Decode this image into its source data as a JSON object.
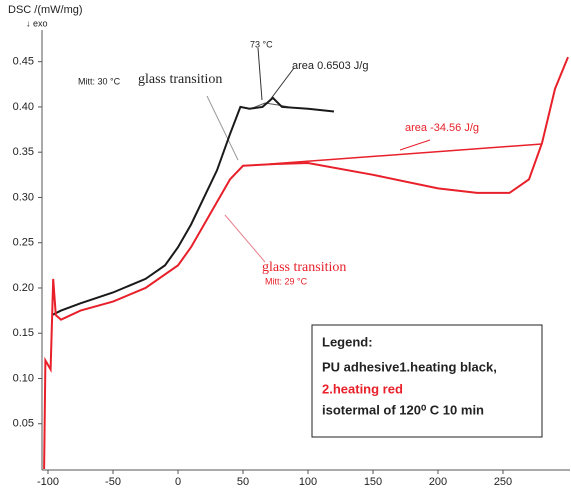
{
  "chart_data": {
    "type": "line",
    "y_label": "DSC /(mW/mg)",
    "y_label2": "↓ exo",
    "xlim": [
      -105,
      302
    ],
    "ylim": [
      0,
      0.485
    ],
    "xticks": [
      -100,
      -50,
      0,
      50,
      100,
      150,
      200,
      250
    ],
    "yticks": [
      0.05,
      {
        "value": 0.1,
        "label": "0.10"
      },
      0.15,
      {
        "value": 0.2,
        "label": "0.20"
      },
      0.25,
      {
        "value": 0.3,
        "label": "0.30"
      },
      0.35,
      {
        "value": 0.4,
        "label": "0.40"
      },
      0.45
    ],
    "series": [
      {
        "color": "#1a1a1a",
        "x": [
          -97,
          -90,
          -75,
          -50,
          -25,
          -10,
          0,
          10,
          20,
          30,
          40,
          48,
          55,
          65,
          73,
          80,
          100,
          120
        ],
        "values": [
          0.17,
          0.175,
          0.183,
          0.195,
          0.21,
          0.225,
          0.245,
          0.27,
          0.3,
          0.33,
          0.37,
          0.4,
          0.398,
          0.4,
          0.41,
          0.4,
          0.398,
          0.395
        ]
      },
      {
        "color": "#e8202a",
        "x": [
          -103,
          -102,
          -98,
          -96,
          -94,
          -90,
          -75,
          -50,
          -25,
          0,
          10,
          20,
          30,
          40,
          50,
          75,
          100,
          150,
          200,
          230,
          255,
          270,
          280,
          290,
          300
        ],
        "values": [
          0.0,
          0.12,
          0.11,
          0.21,
          0.17,
          0.165,
          0.175,
          0.185,
          0.2,
          0.225,
          0.245,
          0.27,
          0.295,
          0.32,
          0.335,
          0.337,
          0.338,
          0.325,
          0.31,
          0.305,
          0.305,
          0.32,
          0.36,
          0.42,
          0.455
        ]
      }
    ],
    "annotations": [
      "73 °C",
      "area 0.6503 J/g",
      "Mitt: 30 °C",
      "glass transition",
      "area -34.56 J/g",
      "glass transition",
      "Mitt: 29 °C"
    ],
    "legend": {
      "title": "Legend:",
      "line1": "PU adhesive1.heating black,",
      "line2": "2.heating red",
      "line3": "isotermal of 120⁰ C 10 min"
    }
  }
}
